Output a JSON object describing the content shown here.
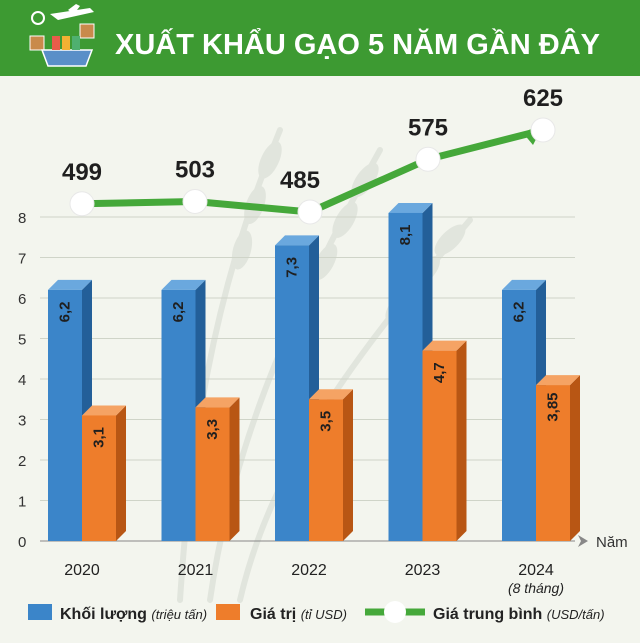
{
  "header": {
    "title": "XUẤT KHẨU GẠO 5 NĂM GẦN ĐÂY",
    "icon": "rice-export-icon"
  },
  "colors": {
    "green_dark": "#3d9a32",
    "green_line": "#45a83a",
    "blue_bar": "#3b85c9",
    "orange_bar": "#ee7d2b",
    "background": "#f3f5ee",
    "axis": "#666666"
  },
  "chart_data": {
    "type": "bar",
    "categories": [
      "2020",
      "2021",
      "2022",
      "2023",
      "2024"
    ],
    "category_sublabels": [
      "",
      "",
      "",
      "",
      "(8 tháng)"
    ],
    "xlabel": "Năm",
    "ylim": [
      0,
      8
    ],
    "yticks": [
      "0",
      "1",
      "2",
      "3",
      "4",
      "5",
      "6",
      "7",
      "8"
    ],
    "series": [
      {
        "name": "Khối lượng",
        "unit": "(triệu tấn)",
        "values": [
          6.2,
          6.2,
          7.3,
          8.1,
          6.2
        ],
        "labels": [
          "6,2",
          "6,2",
          "7,3",
          "8,1",
          "6,2"
        ],
        "color": "#3b85c9"
      },
      {
        "name": "Giá trị",
        "unit": "(tỉ USD)",
        "values": [
          3.1,
          3.3,
          3.5,
          4.7,
          3.85
        ],
        "labels": [
          "3,1",
          "3,3",
          "3,5",
          "4,7",
          "3,85"
        ],
        "color": "#ee7d2b"
      }
    ],
    "line": {
      "name": "Giá trung bình",
      "unit": "(USD/tấn)",
      "values": [
        499,
        503,
        485,
        575,
        625
      ],
      "labels": [
        "499",
        "503",
        "485",
        "575",
        "625"
      ],
      "color": "#45a83a"
    },
    "legend_position": "bottom"
  }
}
